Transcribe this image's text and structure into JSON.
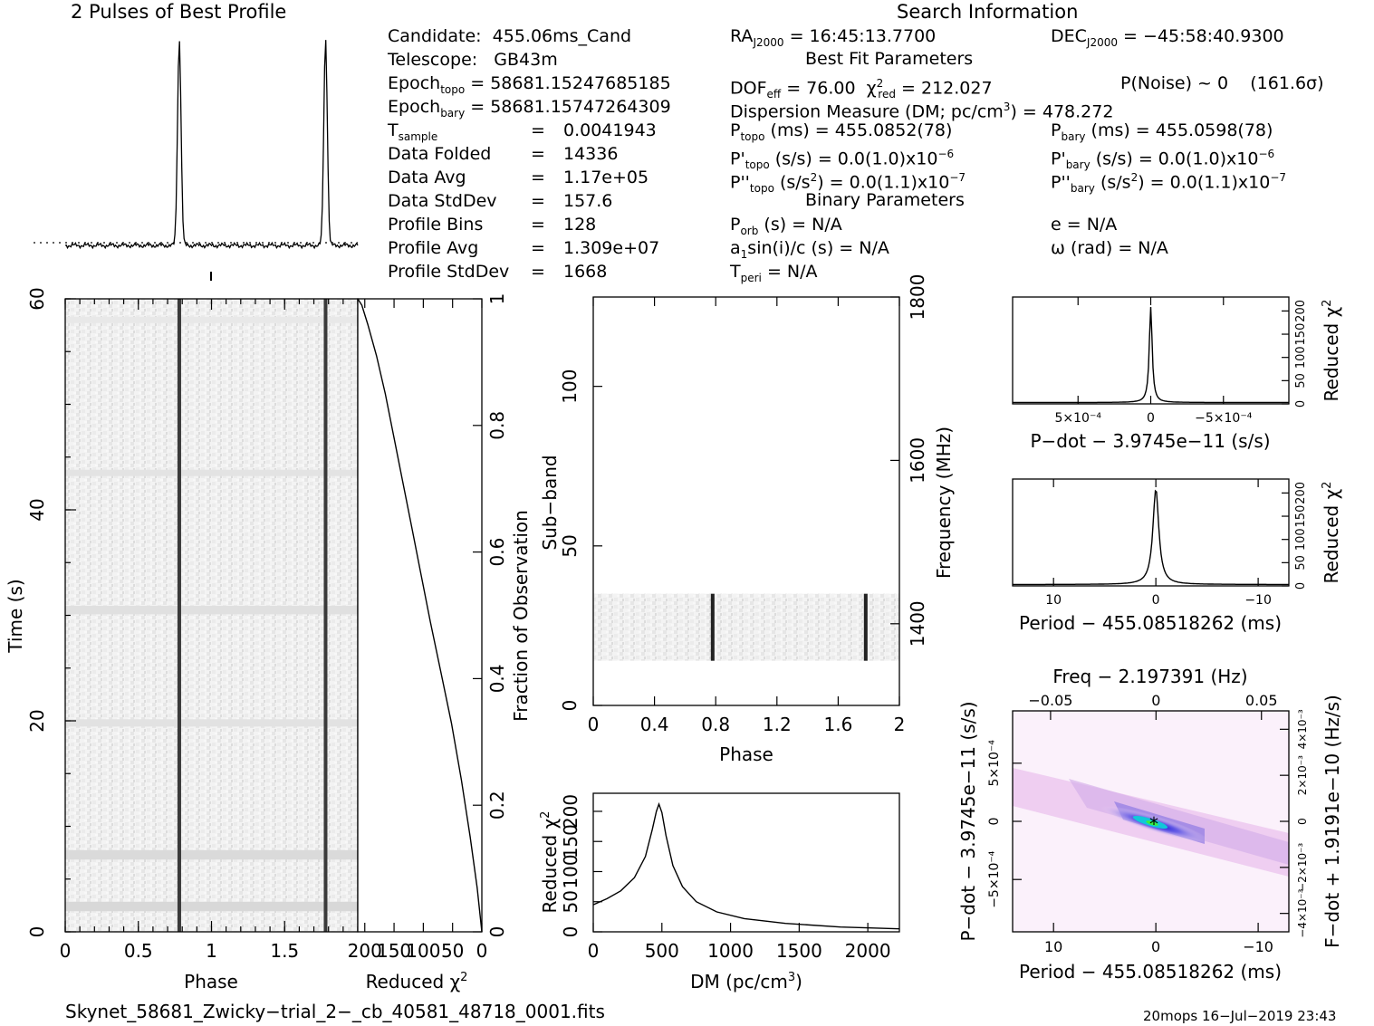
{
  "header": {
    "profile_title": "2 Pulses of Best Profile",
    "search_title": "Search Information"
  },
  "candidate_info": [
    {
      "label": "Candidate:",
      "value": "455.06ms_Cand"
    },
    {
      "label": "Telescope:",
      "value": "GB43m"
    },
    {
      "label": "Epoch",
      "sub": "topo",
      "value": "= 58681.15247685185"
    },
    {
      "label": "Epoch",
      "sub": "bary",
      "value": "= 58681.15747264309"
    },
    {
      "label": "T",
      "sub": "sample",
      "eq": "=",
      "value": "0.0041943"
    },
    {
      "label": "Data Folded",
      "eq": "=",
      "value": "14336"
    },
    {
      "label": "Data Avg",
      "eq": "=",
      "value": "1.17e+05"
    },
    {
      "label": "Data StdDev",
      "eq": "=",
      "value": "157.6"
    },
    {
      "label": "Profile Bins",
      "eq": "=",
      "value": "128"
    },
    {
      "label": "Profile Avg",
      "eq": "=",
      "value": "1.309e+07"
    },
    {
      "label": "Profile StdDev",
      "eq": "=",
      "value": "1668"
    }
  ],
  "search_info": {
    "ra": "RA",
    "ra_sub": "J2000",
    "ra_value": "= 16:45:13.7700",
    "dec": "DEC",
    "dec_sub": "J2000",
    "dec_value": "= −45:58:40.9300",
    "best_fit_title": "Best Fit Parameters",
    "dof": "DOF",
    "dof_sub": "eff",
    "dof_value": "= 76.00",
    "chi": "χ",
    "chi_sup": "2",
    "chi_sub": "red",
    "chi_value": "= 212.027",
    "pnoise": "P(Noise) ~ 0",
    "sigma": "(161.6σ)",
    "dm_line": "Dispersion Measure (DM; pc/cm",
    "dm_sup": "3",
    "dm_value": ") = 478.272",
    "ptopo": "P",
    "ptopo_sub": "topo",
    "ptopo_value": "(ms) =  455.0852(78)",
    "pbary": "P",
    "pbary_sub": "bary",
    "pbary_value": "(ms) =  455.0598(78)",
    "pdtopo": "P'",
    "pdtopo_sub": "topo",
    "pdtopo_value": "(s/s) = 0.0(1.0)x10",
    "pdtopo_exp": "−6",
    "pdbary": "P'",
    "pdbary_sub": "bary",
    "pdbary_value": "(s/s) = 0.0(1.0)x10",
    "pdbary_exp": "−6",
    "pddtopo": "P''",
    "pddtopo_sub": "topo",
    "pddtopo_value": "(s/s",
    "pddtopo_sup": "2",
    "pddtopo_tail": ") = 0.0(1.1)x10",
    "pddtopo_exp": "−7",
    "pddbary": "P''",
    "pddbary_sub": "bary",
    "pddbary_value": "(s/s",
    "pddbary_sup": "2",
    "pddbary_tail": ") = 0.0(1.1)x10",
    "pddbary_exp": "−7",
    "binary_title": "Binary Parameters",
    "porb": "P",
    "porb_sub": "orb",
    "porb_value": "(s) = N/A",
    "ecc": "e = N/A",
    "a1": "a",
    "a1_sub": "1",
    "a1_value": "sin(i)/c (s) = N/A",
    "omega": "ω (rad) = N/A",
    "tperi": "T",
    "tperi_sub": "peri",
    "tperi_value": "= N/A"
  },
  "footer": {
    "filename": "Skynet_58681_Zwicky−trial_2−_cb_40581_48718_0001.fits",
    "stamp": "20mops  16−Jul−2019 23:43"
  },
  "chart_data": [
    {
      "id": "profile",
      "type": "line",
      "title": "2 Pulses of Best Profile",
      "xlim": [
        0,
        2
      ],
      "peaks_phase": [
        0.78,
        1.78
      ],
      "baseline_level": 0.03,
      "peak_level": 1.0
    },
    {
      "id": "time-phase",
      "type": "heatmap",
      "xlabel": "Phase",
      "ylabel": "Time (s)",
      "xlim": [
        0,
        2
      ],
      "ylim": [
        0,
        60
      ],
      "x_ticks": [
        "0",
        "0.5",
        "1",
        "1.5"
      ],
      "x_tick_values": [
        0,
        0.5,
        1,
        1.5
      ],
      "y_ticks": [
        "0",
        "20",
        "40",
        "60"
      ],
      "y_tick_values": [
        0,
        20,
        40,
        60
      ],
      "pulse_phases": [
        0.78,
        1.78
      ]
    },
    {
      "id": "reduced-chi2-time",
      "type": "line",
      "xlabel": "Reduced χ",
      "xlabel_sup": "2",
      "ylabel": "Fraction of Observation",
      "x_ticks": [
        "200",
        "150",
        "100",
        "50",
        "0"
      ],
      "x_tick_values": [
        200,
        150,
        100,
        50,
        0
      ],
      "y_ticks": [
        "0",
        "0.2",
        "0.4",
        "0.6",
        "0.8",
        "1"
      ],
      "y_tick_values": [
        0,
        0.2,
        0.4,
        0.6,
        0.8,
        1
      ],
      "xlim": [
        212,
        0
      ],
      "ylim": [
        0,
        1
      ],
      "x": [
        0,
        8,
        20,
        35,
        52,
        70,
        88,
        105,
        120,
        135,
        150,
        165,
        180,
        195,
        205,
        212
      ],
      "y": [
        0,
        0.07,
        0.15,
        0.24,
        0.33,
        0.41,
        0.49,
        0.57,
        0.64,
        0.71,
        0.78,
        0.85,
        0.91,
        0.96,
        0.99,
        1
      ]
    },
    {
      "id": "subband-phase",
      "type": "heatmap",
      "xlabel": "Phase",
      "ylabel": "Sub−band",
      "ylabel_right": "Frequency (MHz)",
      "xlim": [
        0,
        2
      ],
      "ylim": [
        0,
        128
      ],
      "x_ticks": [
        "0",
        "0.4",
        "0.8",
        "1.2",
        "1.6",
        "2"
      ],
      "x_tick_values": [
        0,
        0.4,
        0.8,
        1.2,
        1.6,
        2
      ],
      "y_ticks": [
        "0",
        "50",
        "100"
      ],
      "y_tick_values": [
        0,
        50,
        100
      ],
      "freq_ticks": [
        "1400",
        "1600",
        "1800"
      ],
      "freq_tick_values": [
        1400,
        1600,
        1800
      ],
      "freq_range": [
        1300,
        1800
      ],
      "data_band": [
        14,
        35
      ],
      "pulse_phases": [
        0.78,
        1.78
      ]
    },
    {
      "id": "dm-chi2",
      "type": "line",
      "xlabel": "DM (pc/cm",
      "xlabel_sup": "3",
      "xlabel_tail": ")",
      "ylabel": "Reduced χ",
      "ylabel_sup": "2",
      "xlim": [
        0,
        2230
      ],
      "ylim": [
        0,
        230
      ],
      "x_ticks": [
        "0",
        "500",
        "1000",
        "1500",
        "2000"
      ],
      "x_tick_values": [
        0,
        500,
        1000,
        1500,
        2000
      ],
      "y_ticks": [
        "0",
        "50",
        "100",
        "150",
        "200"
      ],
      "y_tick_values": [
        0,
        50,
        100,
        150,
        200
      ],
      "x": [
        0,
        100,
        200,
        300,
        380,
        430,
        460,
        478,
        500,
        530,
        580,
        650,
        750,
        900,
        1100,
        1400,
        1800,
        2230
      ],
      "y": [
        45,
        55,
        68,
        90,
        125,
        170,
        200,
        212,
        198,
        160,
        110,
        75,
        50,
        33,
        22,
        14,
        8,
        5
      ]
    },
    {
      "id": "pdot-chi2",
      "type": "line",
      "xlabel": "P−dot − 3.9745e−11 (s/s)",
      "ylabel": "Reduced χ",
      "ylabel_sup": "2",
      "x_ticks": [
        "5×10⁻⁴",
        "0",
        "−5×10⁻⁴"
      ],
      "x_tick_values": [
        0.0005,
        0,
        -0.0005
      ],
      "xlim": [
        0.00095,
        -0.00095
      ],
      "ylim": [
        0,
        230
      ],
      "y_ticks": [
        "0",
        "50",
        "100",
        "150",
        "200"
      ],
      "y_tick_values": [
        0,
        50,
        100,
        150,
        200
      ],
      "peak": 212
    },
    {
      "id": "period-chi2",
      "type": "line",
      "xlabel": "Period − 455.08518262 (ms)",
      "ylabel": "Reduced χ",
      "ylabel_sup": "2",
      "x_ticks": [
        "10",
        "0",
        "−10"
      ],
      "x_tick_values": [
        10,
        0,
        -10
      ],
      "xlim": [
        14,
        -13
      ],
      "ylim": [
        0,
        230
      ],
      "y_ticks": [
        "0",
        "50",
        "100",
        "150",
        "200"
      ],
      "y_tick_values": [
        0,
        50,
        100,
        150,
        200
      ],
      "peak": 212
    },
    {
      "id": "p-pdot-plane",
      "type": "heatmap",
      "title": "Freq − 2.197391 (Hz)",
      "xlabel": "Period − 455.08518262 (ms)",
      "ylabel": "P−dot − 3.9745e−11 (s/s)",
      "ylabel_right": "F−dot + 1.9191e−10 (Hz/s)",
      "x_ticks": [
        "10",
        "0",
        "−10"
      ],
      "x_tick_values": [
        10,
        0,
        -10
      ],
      "xlim": [
        14,
        -13
      ],
      "top_ticks": [
        "−0.05",
        "0",
        "0.05"
      ],
      "top_tick_values": [
        -0.05,
        0,
        0.05
      ],
      "toplim": [
        -0.068,
        0.063
      ],
      "y_ticks": [
        "−5×10⁻⁴",
        "0",
        "5×10⁻⁴"
      ],
      "y_tick_values": [
        -0.0005,
        0,
        0.0005
      ],
      "ylim": [
        0.00095,
        -0.00095
      ],
      "right_ticks": [
        "4×10⁻³",
        "2×10⁻³",
        "0",
        "−2×10⁻³",
        "−4×10⁻³"
      ],
      "right_tick_values": [
        0.004,
        0.002,
        0,
        -0.002,
        -0.004
      ],
      "rightlim": [
        0.0048,
        -0.0048
      ],
      "best_fit": [
        0,
        0
      ]
    }
  ]
}
